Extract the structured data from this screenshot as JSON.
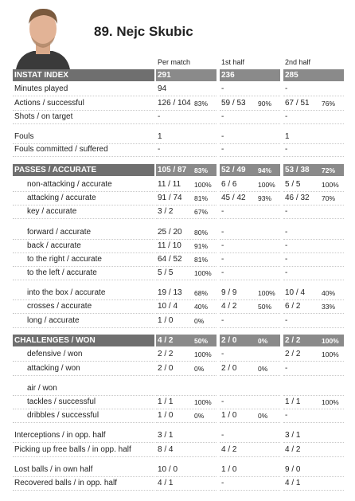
{
  "header": {
    "name": "89. Nejc Skubic"
  },
  "columns": [
    "Per match",
    "1st half",
    "2nd half"
  ],
  "rows": [
    {
      "label": "INSTAT INDEX",
      "values": [
        [
          "291"
        ],
        [
          "236"
        ],
        [
          "285"
        ]
      ]
    },
    {
      "label": "Minutes played",
      "values": [
        [
          "94"
        ],
        [
          "-"
        ],
        [
          "-"
        ]
      ]
    },
    {
      "label": "Actions / successful",
      "values": [
        [
          "126 / 104",
          "83%"
        ],
        [
          "59 / 53",
          "90%"
        ],
        [
          "67 / 51",
          "76%"
        ]
      ]
    },
    {
      "label": "Shots / on target",
      "values": [
        [
          "-"
        ],
        [
          "-"
        ],
        [
          "-"
        ]
      ]
    },
    {
      "label": "Fouls",
      "values": [
        [
          "1"
        ],
        [
          "-"
        ],
        [
          "1"
        ]
      ]
    },
    {
      "label": "Fouls committed / suffered",
      "values": [
        [
          "-"
        ],
        [
          "-"
        ],
        [
          "-"
        ]
      ]
    },
    {
      "label": "PASSES / ACCURATE",
      "values": [
        [
          "105 / 87",
          "83%"
        ],
        [
          "52 / 49",
          "94%"
        ],
        [
          "53 / 38",
          "72%"
        ]
      ]
    },
    {
      "label": "non-attacking / accurate",
      "values": [
        [
          "11 / 11",
          "100%"
        ],
        [
          "6 / 6",
          "100%"
        ],
        [
          "5 / 5",
          "100%"
        ]
      ]
    },
    {
      "label": "attacking / accurate",
      "values": [
        [
          "91 / 74",
          "81%"
        ],
        [
          "45 / 42",
          "93%"
        ],
        [
          "46 / 32",
          "70%"
        ]
      ]
    },
    {
      "label": "key / accurate",
      "values": [
        [
          "3 / 2",
          "67%"
        ],
        [
          "-"
        ],
        [
          "-"
        ]
      ]
    },
    {
      "label": "forward / accurate",
      "values": [
        [
          "25 / 20",
          "80%"
        ],
        [
          "-"
        ],
        [
          "-"
        ]
      ]
    },
    {
      "label": "back / accurate",
      "values": [
        [
          "11 / 10",
          "91%"
        ],
        [
          "-"
        ],
        [
          "-"
        ]
      ]
    },
    {
      "label": "to the right / accurate",
      "values": [
        [
          "64 / 52",
          "81%"
        ],
        [
          "-"
        ],
        [
          "-"
        ]
      ]
    },
    {
      "label": "to the left / accurate",
      "values": [
        [
          "5 / 5",
          "100%"
        ],
        [
          "-"
        ],
        [
          "-"
        ]
      ]
    },
    {
      "label": "into the box / accurate",
      "values": [
        [
          "19 / 13",
          "68%"
        ],
        [
          "9 / 9",
          "100%"
        ],
        [
          "10 / 4",
          "40%"
        ]
      ]
    },
    {
      "label": "crosses / accurate",
      "values": [
        [
          "10 / 4",
          "40%"
        ],
        [
          "4 / 2",
          "50%"
        ],
        [
          "6 / 2",
          "33%"
        ]
      ]
    },
    {
      "label": "long / accurate",
      "values": [
        [
          "1 / 0",
          "0%"
        ],
        [
          "-"
        ],
        [
          "-"
        ]
      ]
    },
    {
      "label": "CHALLENGES / WON",
      "values": [
        [
          "4 / 2",
          "50%"
        ],
        [
          "2 / 0",
          "0%"
        ],
        [
          "2 / 2",
          "100%"
        ]
      ]
    },
    {
      "label": "defensive / won",
      "values": [
        [
          "2 / 2",
          "100%"
        ],
        [
          "-"
        ],
        [
          "2 / 2",
          "100%"
        ]
      ]
    },
    {
      "label": "attacking / won",
      "values": [
        [
          "2 / 0",
          "0%"
        ],
        [
          "2 / 0",
          "0%"
        ],
        [
          "-"
        ]
      ]
    },
    {
      "label": "air / won",
      "values": [
        [],
        [],
        []
      ]
    },
    {
      "label": "tackles / successful",
      "values": [
        [
          "1 / 1",
          "100%"
        ],
        [
          "-"
        ],
        [
          "1 / 1",
          "100%"
        ]
      ]
    },
    {
      "label": "dribbles / successful",
      "values": [
        [
          "1 / 0",
          "0%"
        ],
        [
          "1 / 0",
          "0%"
        ],
        [
          "-"
        ]
      ]
    },
    {
      "label": "Interceptions / in opp. half",
      "values": [
        [
          "3 / 1"
        ],
        [
          "-"
        ],
        [
          "3 / 1"
        ]
      ]
    },
    {
      "label": "Picking up free balls / in opp. half",
      "values": [
        [
          "8 / 4"
        ],
        [
          "4 / 2"
        ],
        [
          "4 / 2"
        ]
      ]
    },
    {
      "label": "Lost balls / in own half",
      "values": [
        [
          "10 / 0"
        ],
        [
          "1 / 0"
        ],
        [
          "9 / 0"
        ]
      ]
    },
    {
      "label": "Recovered balls / in opp. half",
      "values": [
        [
          "4 / 1"
        ],
        [
          "-"
        ],
        [
          "4 / 1"
        ]
      ]
    }
  ]
}
